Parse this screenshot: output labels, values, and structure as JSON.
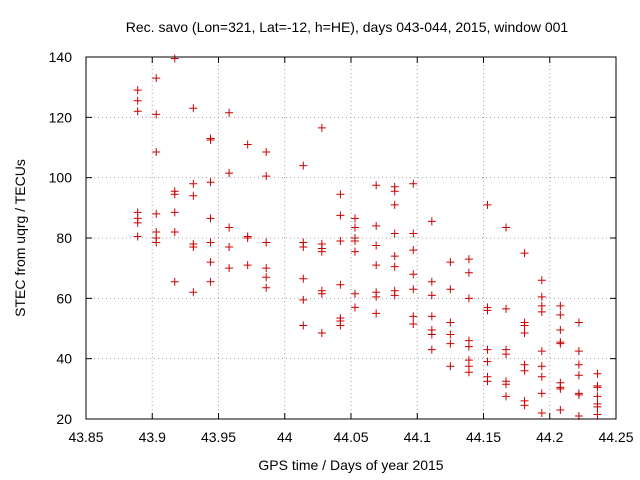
{
  "chart_data": {
    "type": "scatter",
    "title": "Rec. savo (Lon=321, Lat=-12, h=HE), days 043-044, 2015, window 001",
    "xlabel": "GPS time / Days of year 2015",
    "ylabel": "STEC from uqrg / TECUs",
    "xlim": [
      43.85,
      44.25
    ],
    "ylim": [
      20,
      140
    ],
    "x_ticks": [
      43.85,
      43.9,
      43.95,
      44.0,
      44.05,
      44.1,
      44.15,
      44.2,
      44.25
    ],
    "x_tick_labels": [
      "43.85",
      "43.9",
      "43.95",
      "44",
      "44.05",
      "44.1",
      "44.15",
      "44.2",
      "44.25"
    ],
    "y_ticks": [
      20,
      40,
      60,
      80,
      100,
      120,
      140
    ],
    "y_tick_labels": [
      "20",
      "40",
      "60",
      "80",
      "100",
      "120",
      "140"
    ],
    "grid": true,
    "marker": "+",
    "marker_color": "#cc0000",
    "series": [
      {
        "name": "STEC",
        "points": [
          [
            43.889,
            129
          ],
          [
            43.889,
            125.5
          ],
          [
            43.889,
            122
          ],
          [
            43.889,
            88.5
          ],
          [
            43.889,
            86.5
          ],
          [
            43.889,
            85
          ],
          [
            43.889,
            80.5
          ],
          [
            43.903,
            133
          ],
          [
            43.903,
            121
          ],
          [
            43.903,
            108.5
          ],
          [
            43.903,
            88
          ],
          [
            43.903,
            82
          ],
          [
            43.903,
            80
          ],
          [
            43.903,
            78.5
          ],
          [
            43.917,
            139.5
          ],
          [
            43.917,
            95.5
          ],
          [
            43.917,
            94.5
          ],
          [
            43.917,
            88.5
          ],
          [
            43.917,
            82
          ],
          [
            43.917,
            65.5
          ],
          [
            43.931,
            123
          ],
          [
            43.931,
            98
          ],
          [
            43.931,
            94
          ],
          [
            43.931,
            78
          ],
          [
            43.931,
            77
          ],
          [
            43.931,
            62
          ],
          [
            43.944,
            113
          ],
          [
            43.944,
            112.5
          ],
          [
            43.944,
            98.5
          ],
          [
            43.944,
            86.5
          ],
          [
            43.944,
            78.5
          ],
          [
            43.944,
            72
          ],
          [
            43.944,
            65.5
          ],
          [
            43.958,
            121.5
          ],
          [
            43.958,
            101.5
          ],
          [
            43.958,
            83.5
          ],
          [
            43.958,
            77
          ],
          [
            43.958,
            70
          ],
          [
            43.972,
            111
          ],
          [
            43.972,
            80.5
          ],
          [
            43.972,
            80
          ],
          [
            43.972,
            71
          ],
          [
            43.986,
            108.5
          ],
          [
            43.986,
            100.5
          ],
          [
            43.986,
            78.5
          ],
          [
            43.986,
            70
          ],
          [
            43.986,
            67
          ],
          [
            43.986,
            63.5
          ],
          [
            44.014,
            104
          ],
          [
            44.014,
            78.5
          ],
          [
            44.014,
            77
          ],
          [
            44.014,
            66.5
          ],
          [
            44.014,
            59.5
          ],
          [
            44.014,
            51
          ],
          [
            44.028,
            116.5
          ],
          [
            44.028,
            78
          ],
          [
            44.028,
            76.5
          ],
          [
            44.028,
            75.5
          ],
          [
            44.028,
            62.5
          ],
          [
            44.028,
            61.5
          ],
          [
            44.028,
            48.5
          ],
          [
            44.042,
            94.5
          ],
          [
            44.042,
            87.5
          ],
          [
            44.042,
            79
          ],
          [
            44.042,
            64.5
          ],
          [
            44.042,
            53.5
          ],
          [
            44.042,
            52.5
          ],
          [
            44.042,
            51
          ],
          [
            44.053,
            86.5
          ],
          [
            44.053,
            83.5
          ],
          [
            44.053,
            80
          ],
          [
            44.053,
            79
          ],
          [
            44.053,
            75.5
          ],
          [
            44.053,
            61.5
          ],
          [
            44.053,
            57
          ],
          [
            44.069,
            97.5
          ],
          [
            44.069,
            84
          ],
          [
            44.069,
            77.5
          ],
          [
            44.069,
            71
          ],
          [
            44.069,
            62
          ],
          [
            44.069,
            60.5
          ],
          [
            44.069,
            55
          ],
          [
            44.083,
            97
          ],
          [
            44.083,
            95.5
          ],
          [
            44.083,
            91
          ],
          [
            44.083,
            81.5
          ],
          [
            44.083,
            74
          ],
          [
            44.083,
            70.5
          ],
          [
            44.083,
            62.5
          ],
          [
            44.083,
            61
          ],
          [
            44.097,
            98
          ],
          [
            44.097,
            81.5
          ],
          [
            44.097,
            76
          ],
          [
            44.097,
            68
          ],
          [
            44.097,
            63
          ],
          [
            44.097,
            54
          ],
          [
            44.097,
            51.5
          ],
          [
            44.111,
            85.5
          ],
          [
            44.111,
            65.5
          ],
          [
            44.111,
            61
          ],
          [
            44.111,
            54
          ],
          [
            44.111,
            49.5
          ],
          [
            44.111,
            48
          ],
          [
            44.111,
            43
          ],
          [
            44.125,
            72
          ],
          [
            44.125,
            63
          ],
          [
            44.125,
            52
          ],
          [
            44.125,
            48
          ],
          [
            44.125,
            45
          ],
          [
            44.125,
            37.5
          ],
          [
            44.139,
            73
          ],
          [
            44.139,
            68.5
          ],
          [
            44.139,
            60
          ],
          [
            44.139,
            46
          ],
          [
            44.139,
            44
          ],
          [
            44.139,
            39.5
          ],
          [
            44.139,
            37.5
          ],
          [
            44.139,
            35.5
          ],
          [
            44.153,
            91
          ],
          [
            44.153,
            57
          ],
          [
            44.153,
            56
          ],
          [
            44.153,
            43
          ],
          [
            44.153,
            39
          ],
          [
            44.153,
            34
          ],
          [
            44.153,
            32.5
          ],
          [
            44.167,
            83.5
          ],
          [
            44.167,
            56.5
          ],
          [
            44.167,
            43
          ],
          [
            44.167,
            41.5
          ],
          [
            44.167,
            32.5
          ],
          [
            44.167,
            31.5
          ],
          [
            44.167,
            27.5
          ],
          [
            44.181,
            75
          ],
          [
            44.181,
            52
          ],
          [
            44.181,
            51
          ],
          [
            44.181,
            48.5
          ],
          [
            44.181,
            38
          ],
          [
            44.181,
            36
          ],
          [
            44.181,
            26
          ],
          [
            44.181,
            24.5
          ],
          [
            44.194,
            66
          ],
          [
            44.194,
            60.5
          ],
          [
            44.194,
            57.5
          ],
          [
            44.194,
            55.5
          ],
          [
            44.194,
            42.5
          ],
          [
            44.194,
            37.5
          ],
          [
            44.194,
            34
          ],
          [
            44.194,
            28.5
          ],
          [
            44.194,
            22
          ],
          [
            44.208,
            57.5
          ],
          [
            44.208,
            54.5
          ],
          [
            44.208,
            49.5
          ],
          [
            44.208,
            45.5
          ],
          [
            44.208,
            45
          ],
          [
            44.208,
            32
          ],
          [
            44.208,
            30.5
          ],
          [
            44.208,
            30
          ],
          [
            44.208,
            23
          ],
          [
            44.222,
            52
          ],
          [
            44.222,
            42.5
          ],
          [
            44.222,
            38
          ],
          [
            44.222,
            34.5
          ],
          [
            44.222,
            28.5
          ],
          [
            44.222,
            28
          ],
          [
            44.222,
            21
          ],
          [
            44.236,
            35
          ],
          [
            44.236,
            31
          ],
          [
            44.236,
            30.5
          ],
          [
            44.236,
            27.5
          ],
          [
            44.236,
            25
          ],
          [
            44.236,
            24
          ],
          [
            44.236,
            21.5
          ]
        ]
      }
    ]
  }
}
